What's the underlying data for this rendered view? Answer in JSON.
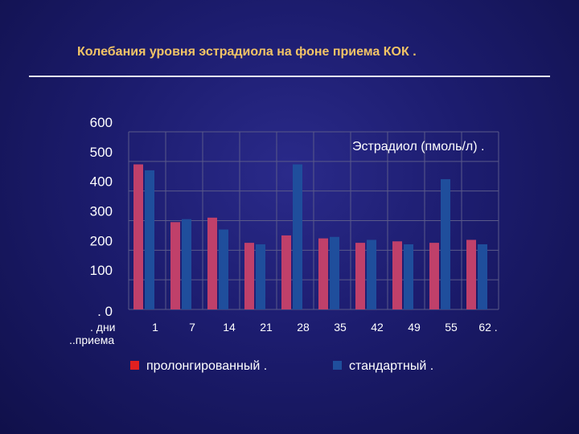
{
  "title": "Колебания уровня эстрадиола на фоне приема КОК .",
  "chart_data": {
    "type": "bar",
    "title": "Колебания уровня эстрадиола на фоне приема КОК .",
    "annotation": "Эстрадиол (пмоль/л) .",
    "xlabel_line1": ". дни",
    "xlabel_line2": "..приема",
    "ytick_labels": [
      "600",
      "500",
      "400",
      "300",
      "200",
      "100",
      ". 0"
    ],
    "categories": [
      "1",
      "7",
      "14",
      "21",
      "28",
      "35",
      "42",
      "49",
      "55",
      "62 ."
    ],
    "ylim": [
      0,
      600
    ],
    "grid": true,
    "legend_position": "bottom",
    "series": [
      {
        "name": "пролонгированный .",
        "color": "#c0406a",
        "values": [
          490,
          295,
          310,
          225,
          250,
          240,
          225,
          230,
          225,
          235
        ]
      },
      {
        "name": "стандартный .",
        "color": "#1f4e9c",
        "values": [
          470,
          305,
          270,
          220,
          490,
          245,
          235,
          220,
          440,
          220
        ]
      }
    ]
  }
}
